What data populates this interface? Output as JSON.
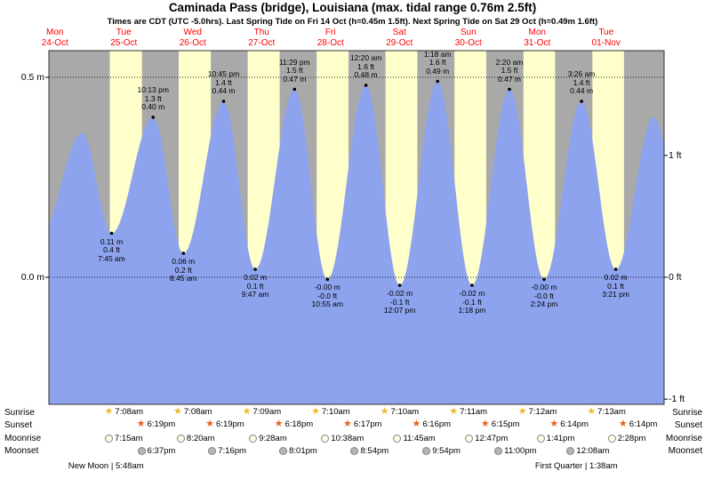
{
  "title": "Caminada Pass (bridge), Louisiana (max. tidal range 0.76m 2.5ft)",
  "subtitle": "Times are CDT (UTC -5.0hrs). Last Spring Tide on Fri 14 Oct (h=0.45m 1.5ft). Next Spring Tide on Sat 29 Oct (h=0.49m 1.6ft)",
  "rows": {
    "sunrise": "Sunrise",
    "sunset": "Sunset",
    "moonrise": "Moonrise",
    "moonset": "Moonset"
  },
  "chart_data": {
    "type": "area",
    "title": "Caminada Pass (bridge), Louisiana (max. tidal range 0.76m 2.5ft)",
    "x_range": "Mon 24 Oct (morning) through Wed 02 Nov (morning), one day per column",
    "ylim_m": [
      -0.32,
      0.57
    ],
    "x_axis_days": [
      {
        "name": "Mon",
        "date": "24-Oct"
      },
      {
        "name": "Tue",
        "date": "25-Oct"
      },
      {
        "name": "Wed",
        "date": "26-Oct"
      },
      {
        "name": "Thu",
        "date": "27-Oct"
      },
      {
        "name": "Fri",
        "date": "28-Oct"
      },
      {
        "name": "Sat",
        "date": "29-Oct"
      },
      {
        "name": "Sun",
        "date": "30-Oct"
      },
      {
        "name": "Mon",
        "date": "31-Oct"
      },
      {
        "name": "Tue",
        "date": "01-Nov"
      }
    ],
    "y_ticks_left": [
      {
        "label": "0.5 m",
        "m": 0.5
      },
      {
        "label": "0.0 m",
        "m": 0.0
      }
    ],
    "y_ticks_right": [
      {
        "label": "1 ft",
        "m": 0.3048
      },
      {
        "label": "0 ft",
        "m": 0.0
      },
      {
        "label": "-1 ft",
        "m": -0.3048
      }
    ],
    "tide_events": [
      {
        "kind": "low",
        "day": 0,
        "time": "6:45 am",
        "m": 0.1,
        "labeled": false
      },
      {
        "kind": "high",
        "day": 0,
        "time": "9:25 pm",
        "m": 0.36,
        "labeled": false
      },
      {
        "kind": "low",
        "day": 1,
        "time": "7:45 am",
        "m": 0.11,
        "labeled": true,
        "lines": [
          "0.11 m",
          "0.4 ft",
          "7:45 am"
        ]
      },
      {
        "kind": "high",
        "day": 1,
        "time": "10:13 pm",
        "m": 0.4,
        "labeled": true,
        "lines": [
          "10:13 pm",
          "1.3 ft",
          "0.40 m"
        ]
      },
      {
        "kind": "low",
        "day": 2,
        "time": "8:45 am",
        "m": 0.06,
        "labeled": true,
        "lines": [
          "0.06 m",
          "0.2 ft",
          "8:45 am"
        ]
      },
      {
        "kind": "high",
        "day": 2,
        "time": "10:45 pm",
        "m": 0.44,
        "labeled": true,
        "lines": [
          "10:45 pm",
          "1.4 ft",
          "0.44 m"
        ]
      },
      {
        "kind": "low",
        "day": 3,
        "time": "9:47 am",
        "m": 0.02,
        "labeled": true,
        "lines": [
          "0.02 m",
          "0.1 ft",
          "9:47 am"
        ]
      },
      {
        "kind": "high",
        "day": 3,
        "time": "11:29 pm",
        "m": 0.47,
        "labeled": true,
        "lines": [
          "11:29 pm",
          "1.5 ft",
          "0.47 m"
        ]
      },
      {
        "kind": "low",
        "day": 4,
        "time": "10:55 am",
        "m": -0.005,
        "labeled": true,
        "lines": [
          "-0.00 m",
          "-0.0 ft",
          "10:55 am"
        ]
      },
      {
        "kind": "high",
        "day": 5,
        "time": "12:20 am",
        "m": 0.48,
        "labeled": true,
        "lines": [
          "12:20 am",
          "1.6 ft",
          "0.48 m"
        ]
      },
      {
        "kind": "low",
        "day": 5,
        "time": "12:07 pm",
        "m": -0.02,
        "labeled": true,
        "lines": [
          "-0.02 m",
          "-0.1 ft",
          "12:07 pm"
        ]
      },
      {
        "kind": "high",
        "day": 6,
        "time": "1:18 am",
        "m": 0.49,
        "labeled": true,
        "lines": [
          "1:18 am",
          "1.6 ft",
          "0.49 m"
        ]
      },
      {
        "kind": "low",
        "day": 6,
        "time": "1:18 pm",
        "m": -0.02,
        "labeled": true,
        "lines": [
          "-0.02 m",
          "-0.1 ft",
          "1:18 pm"
        ]
      },
      {
        "kind": "high",
        "day": 7,
        "time": "2:20 am",
        "m": 0.47,
        "labeled": true,
        "lines": [
          "2:20 am",
          "1.5 ft",
          "0.47 m"
        ]
      },
      {
        "kind": "low",
        "day": 7,
        "time": "2:24 pm",
        "m": -0.005,
        "labeled": true,
        "lines": [
          "-0.00 m",
          "-0.0 ft",
          "2:24 pm"
        ]
      },
      {
        "kind": "high",
        "day": 8,
        "time": "3:26 am",
        "m": 0.44,
        "labeled": true,
        "lines": [
          "3:26 am",
          "1.4 ft",
          "0.44 m"
        ]
      },
      {
        "kind": "low",
        "day": 8,
        "time": "3:21 pm",
        "m": 0.02,
        "labeled": true,
        "lines": [
          "0.02 m",
          "0.1 ft",
          "3:21 pm"
        ]
      },
      {
        "kind": "high",
        "day": 9,
        "time": "4:35 am",
        "m": 0.4,
        "labeled": false
      },
      {
        "kind": "low",
        "day": 9,
        "time": "4:30 pm",
        "m": 0.06,
        "labeled": false
      }
    ],
    "sun": {
      "sunrise": [
        {
          "day": 1,
          "time": "7:08am"
        },
        {
          "day": 2,
          "time": "7:08am"
        },
        {
          "day": 3,
          "time": "7:09am"
        },
        {
          "day": 4,
          "time": "7:10am"
        },
        {
          "day": 5,
          "time": "7:10am"
        },
        {
          "day": 6,
          "time": "7:11am"
        },
        {
          "day": 7,
          "time": "7:12am"
        },
        {
          "day": 8,
          "time": "7:13am"
        }
      ],
      "sunset": [
        {
          "day": 1,
          "time": "6:19pm"
        },
        {
          "day": 2,
          "time": "6:19pm"
        },
        {
          "day": 3,
          "time": "6:18pm"
        },
        {
          "day": 4,
          "time": "6:17pm"
        },
        {
          "day": 5,
          "time": "6:16pm"
        },
        {
          "day": 6,
          "time": "6:15pm"
        },
        {
          "day": 7,
          "time": "6:14pm"
        },
        {
          "day": 8,
          "time": "6:14pm"
        }
      ]
    },
    "moon": {
      "moonrise": [
        {
          "day": 1,
          "time": "7:15am"
        },
        {
          "day": 2,
          "time": "8:20am"
        },
        {
          "day": 3,
          "time": "9:28am"
        },
        {
          "day": 4,
          "time": "10:38am"
        },
        {
          "day": 5,
          "time": "11:45am"
        },
        {
          "day": 6,
          "time": "12:47pm"
        },
        {
          "day": 7,
          "time": "1:41pm"
        },
        {
          "day": 8,
          "time": "2:28pm"
        }
      ],
      "moonset": [
        {
          "day": 1,
          "time": "6:37pm"
        },
        {
          "day": 2,
          "time": "7:16pm"
        },
        {
          "day": 3,
          "time": "8:01pm"
        },
        {
          "day": 4,
          "time": "8:54pm"
        },
        {
          "day": 5,
          "time": "9:54pm"
        },
        {
          "day": 6,
          "time": "11:00pm"
        },
        {
          "day": 8,
          "time": "12:08am"
        }
      ]
    },
    "moon_phases": [
      {
        "label": "New Moon | 5:48am",
        "day": 1,
        "time": "5:48am"
      },
      {
        "label": "First Quarter | 1:38am",
        "day": 8,
        "time": "1:38am"
      }
    ],
    "colors": {
      "night_band": "#a9a9a9",
      "day_band": "#ffffcc",
      "tide_fill": "#8da3ee",
      "day_label_red": "#ff0000",
      "frame": "#333333"
    }
  }
}
